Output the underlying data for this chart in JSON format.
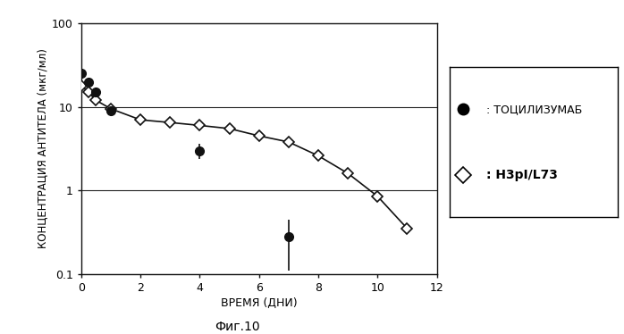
{
  "tocilizumab_x": [
    0,
    0.25,
    0.5,
    1,
    4,
    7
  ],
  "tocilizumab_y": [
    25,
    20,
    15,
    9,
    3.0,
    0.28
  ],
  "tocilizumab_yerr_low": [
    0,
    0,
    0,
    0,
    0.6,
    0.17
  ],
  "tocilizumab_yerr_high": [
    0,
    0,
    0,
    0,
    0.6,
    0.17
  ],
  "h3pl_x": [
    0,
    0.25,
    0.5,
    1,
    2,
    3,
    4,
    5,
    6,
    7,
    8,
    9,
    10,
    11
  ],
  "h3pl_y": [
    18,
    15,
    12,
    9.5,
    7.0,
    6.5,
    6.0,
    5.5,
    4.5,
    3.8,
    2.6,
    1.6,
    0.85,
    0.35
  ],
  "xlabel": "ВРЕМЯ (ДНИ)",
  "ylabel": "КОНЦЕНТРАЦИЯ АНТИТЕЛА (мкг/мл)",
  "legend_toc": ": ТОЦИЛИЗУМАБ",
  "legend_h3pl": ": H3pI/L73",
  "caption": "Фиг.10",
  "xlim": [
    0,
    12
  ],
  "ylim_log": [
    0.1,
    100
  ],
  "xticks": [
    0,
    2,
    4,
    6,
    8,
    10,
    12
  ],
  "yticks_log": [
    0.1,
    1,
    10,
    100
  ],
  "ytick_labels": [
    "0.1",
    "1",
    "10",
    "100"
  ],
  "bg_color": "#ffffff",
  "line_color": "#111111"
}
